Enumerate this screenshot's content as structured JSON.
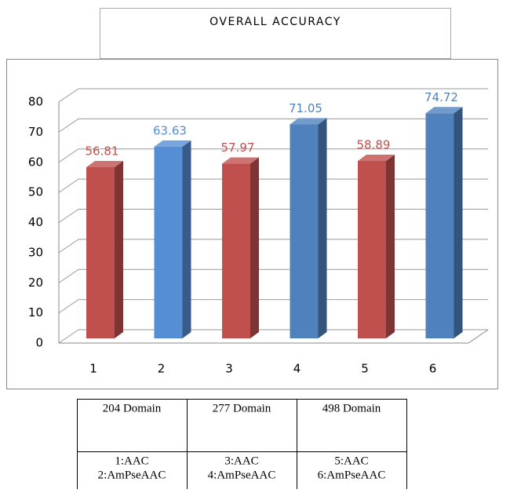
{
  "chart_data": {
    "type": "bar3d",
    "title": "OVERALL ACCURACY",
    "categories": [
      "1",
      "2",
      "3",
      "4",
      "5",
      "6"
    ],
    "values": [
      56.81,
      63.63,
      57.97,
      71.05,
      58.89,
      74.72
    ],
    "colors": [
      "#c0504d",
      "#558ed5",
      "#c0504d",
      "#4f81bd",
      "#c0504d",
      "#4f81bd"
    ],
    "ylim": [
      0,
      80
    ],
    "yticks": [
      0,
      10,
      20,
      30,
      40,
      50,
      60,
      70,
      80
    ],
    "grid": true
  },
  "table": {
    "rows": [
      [
        "204 Domain",
        "277 Domain",
        "498 Domain"
      ],
      [
        [
          "1:AAC",
          "2:AmPseAAC"
        ],
        [
          "3:AAC",
          "4:AmPseAAC"
        ],
        [
          "5:AAC",
          "6:AmPseAAC"
        ]
      ]
    ]
  }
}
